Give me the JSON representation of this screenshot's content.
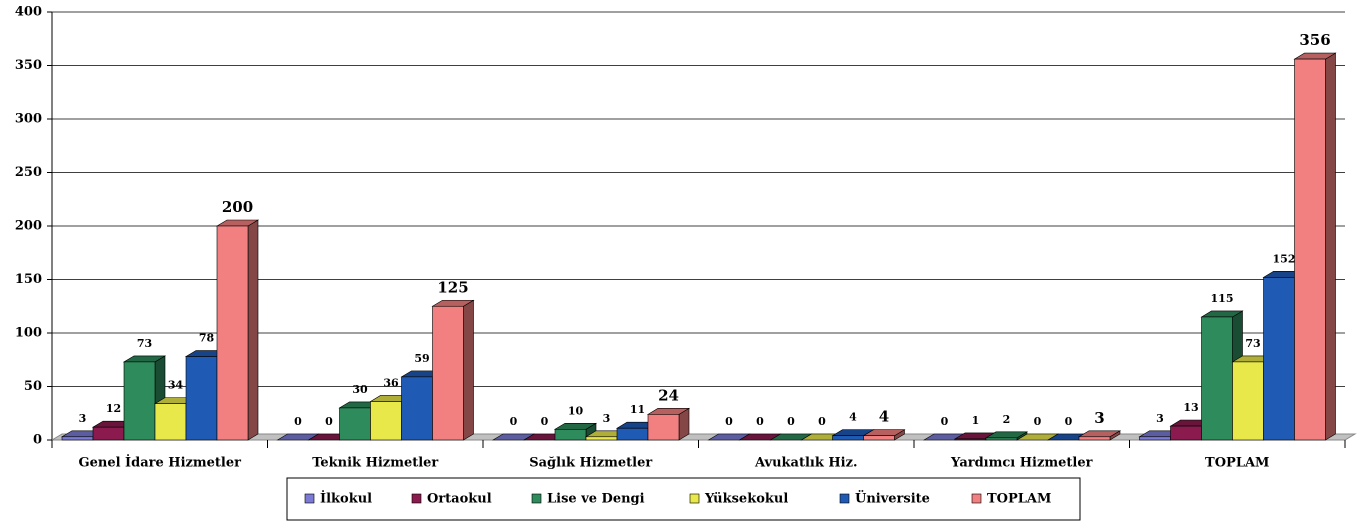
{
  "chart_data": {
    "type": "bar3d",
    "categories": [
      "Genel İdare Hizmetler",
      "Teknik Hizmetler",
      "Sağlık Hizmetler",
      "Avukatlık Hiz.",
      "Yardımcı Hizmetler",
      "TOPLAM"
    ],
    "series": [
      {
        "name": "İlkokul",
        "color": "#7b7bd6",
        "values": [
          3,
          0,
          0,
          0,
          0,
          3
        ]
      },
      {
        "name": "Ortaokul",
        "color": "#8b1a4e",
        "values": [
          12,
          0,
          0,
          0,
          1,
          13
        ]
      },
      {
        "name": "Lise ve Dengi",
        "color": "#2e8b5c",
        "values": [
          73,
          30,
          10,
          0,
          2,
          115
        ]
      },
      {
        "name": "Yüksekokul",
        "color": "#e8e84a",
        "values": [
          34,
          36,
          3,
          0,
          0,
          73
        ]
      },
      {
        "name": "Üniversite",
        "color": "#1f5bb5",
        "values": [
          78,
          59,
          11,
          4,
          0,
          152
        ]
      },
      {
        "name": "TOPLAM",
        "color": "#f28080",
        "values": [
          200,
          125,
          24,
          4,
          3,
          356
        ]
      }
    ],
    "ylim": [
      0,
      400
    ],
    "yticks": [
      0,
      50,
      100,
      150,
      200,
      250,
      300,
      350,
      400
    ],
    "grid": true,
    "legend": "bottom"
  }
}
